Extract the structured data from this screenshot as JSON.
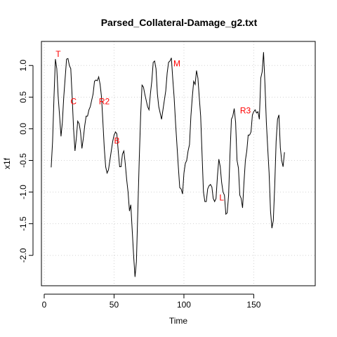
{
  "chart_data": {
    "type": "line",
    "title": "Parsed_Collateral-Damage_g2.txt",
    "xlabel": "Time",
    "ylabel": "x1f",
    "xlim": [
      -2,
      194
    ],
    "ylim": [
      -2.48,
      1.38
    ],
    "xticks": [
      0,
      50,
      100,
      150
    ],
    "xtick_labels": [
      "0",
      "50",
      "100",
      "150"
    ],
    "yticks": [
      -2.0,
      -1.5,
      -1.0,
      -0.5,
      0.0,
      0.5,
      1.0
    ],
    "ytick_labels": [
      "-2.0",
      "-1.5",
      "-1.0",
      "-0.5",
      "0.0",
      "0.5",
      "1.0"
    ],
    "grid": true,
    "line_color": "#000000",
    "grid_color": "#d3d3d3",
    "annotation_color": "#ff0000",
    "series": [
      {
        "values": [
          [
            5,
            -0.61
          ],
          [
            6,
            -0.2
          ],
          [
            7,
            0.5
          ],
          [
            8,
            1.1
          ],
          [
            9,
            0.95
          ],
          [
            10,
            0.5
          ],
          [
            11,
            0.2
          ],
          [
            12,
            -0.12
          ],
          [
            13,
            0.1
          ],
          [
            14,
            0.5
          ],
          [
            15,
            0.8
          ],
          [
            16,
            1.1
          ],
          [
            17,
            1.11
          ],
          [
            18,
            1.0
          ],
          [
            19,
            0.95
          ],
          [
            20,
            0.5
          ],
          [
            21,
            0.0
          ],
          [
            22,
            -0.35
          ],
          [
            23,
            -0.15
          ],
          [
            24,
            0.12
          ],
          [
            25,
            0.08
          ],
          [
            26,
            -0.05
          ],
          [
            27,
            -0.31
          ],
          [
            28,
            -0.15
          ],
          [
            29,
            0.05
          ],
          [
            30,
            0.2
          ],
          [
            31,
            0.2
          ],
          [
            32,
            0.3
          ],
          [
            33,
            0.35
          ],
          [
            34,
            0.45
          ],
          [
            35,
            0.55
          ],
          [
            36,
            0.75
          ],
          [
            37,
            0.77
          ],
          [
            38,
            0.76
          ],
          [
            39,
            0.82
          ],
          [
            40,
            0.7
          ],
          [
            41,
            0.5
          ],
          [
            42,
            0.1
          ],
          [
            43,
            -0.3
          ],
          [
            44,
            -0.6
          ],
          [
            45,
            -0.7
          ],
          [
            46,
            -0.65
          ],
          [
            47,
            -0.5
          ],
          [
            48,
            -0.35
          ],
          [
            49,
            -0.2
          ],
          [
            50,
            -0.1
          ],
          [
            51,
            -0.05
          ],
          [
            52,
            -0.08
          ],
          [
            53,
            -0.35
          ],
          [
            54,
            -0.6
          ],
          [
            55,
            -0.6
          ],
          [
            56,
            -0.4
          ],
          [
            57,
            -0.35
          ],
          [
            58,
            -0.55
          ],
          [
            59,
            -0.8
          ],
          [
            60,
            -1.0
          ],
          [
            61,
            -1.3
          ],
          [
            62,
            -1.2
          ],
          [
            63,
            -1.6
          ],
          [
            64,
            -2.0
          ],
          [
            65,
            -2.34
          ],
          [
            66,
            -2.1
          ],
          [
            67,
            -1.3
          ],
          [
            68,
            -0.5
          ],
          [
            69,
            0.2
          ],
          [
            70,
            0.69
          ],
          [
            71,
            0.66
          ],
          [
            72,
            0.55
          ],
          [
            73,
            0.45
          ],
          [
            74,
            0.35
          ],
          [
            75,
            0.3
          ],
          [
            76,
            0.55
          ],
          [
            77,
            0.75
          ],
          [
            78,
            1.05
          ],
          [
            79,
            1.07
          ],
          [
            80,
            0.95
          ],
          [
            81,
            0.55
          ],
          [
            82,
            0.35
          ],
          [
            83,
            0.25
          ],
          [
            84,
            0.15
          ],
          [
            85,
            0.3
          ],
          [
            86,
            0.45
          ],
          [
            87,
            0.6
          ],
          [
            88,
            0.88
          ],
          [
            89,
            1.05
          ],
          [
            90,
            1.07
          ],
          [
            91,
            1.12
          ],
          [
            92,
            0.8
          ],
          [
            93,
            0.5
          ],
          [
            94,
            0.1
          ],
          [
            95,
            -0.25
          ],
          [
            96,
            -0.6
          ],
          [
            97,
            -0.93
          ],
          [
            98,
            -0.95
          ],
          [
            99,
            -1.03
          ],
          [
            100,
            -0.7
          ],
          [
            101,
            -0.55
          ],
          [
            102,
            -0.5
          ],
          [
            103,
            -0.35
          ],
          [
            104,
            -0.25
          ],
          [
            105,
            0.2
          ],
          [
            106,
            0.5
          ],
          [
            107,
            0.75
          ],
          [
            108,
            0.7
          ],
          [
            109,
            0.92
          ],
          [
            110,
            0.8
          ],
          [
            111,
            0.5
          ],
          [
            112,
            0.2
          ],
          [
            113,
            -0.4
          ],
          [
            114,
            -1.0
          ],
          [
            115,
            -1.15
          ],
          [
            116,
            -1.15
          ],
          [
            117,
            -0.95
          ],
          [
            118,
            -0.9
          ],
          [
            119,
            -0.88
          ],
          [
            120,
            -0.92
          ],
          [
            121,
            -1.1
          ],
          [
            122,
            -1.15
          ],
          [
            123,
            -1.1
          ],
          [
            124,
            -0.75
          ],
          [
            125,
            -0.48
          ],
          [
            126,
            -0.6
          ],
          [
            127,
            -0.85
          ],
          [
            128,
            -1.0
          ],
          [
            129,
            -1.05
          ],
          [
            130,
            -1.35
          ],
          [
            131,
            -1.33
          ],
          [
            132,
            -1.05
          ],
          [
            133,
            -0.4
          ],
          [
            134,
            0.15
          ],
          [
            135,
            0.2
          ],
          [
            136,
            0.32
          ],
          [
            137,
            0.1
          ],
          [
            138,
            -0.5
          ],
          [
            139,
            -0.62
          ],
          [
            140,
            -1.05
          ],
          [
            141,
            -1.1
          ],
          [
            142,
            -1.25
          ],
          [
            143,
            -0.85
          ],
          [
            144,
            -0.5
          ],
          [
            145,
            -0.35
          ],
          [
            146,
            -0.1
          ],
          [
            147,
            -0.1
          ],
          [
            148,
            -0.05
          ],
          [
            149,
            0.22
          ],
          [
            150,
            0.27
          ],
          [
            151,
            0.3
          ],
          [
            152,
            0.25
          ],
          [
            153,
            0.27
          ],
          [
            154,
            0.15
          ],
          [
            155,
            0.8
          ],
          [
            156,
            0.9
          ],
          [
            157,
            1.21
          ],
          [
            158,
            0.7
          ],
          [
            159,
            0.1
          ],
          [
            160,
            -0.3
          ],
          [
            161,
            -0.7
          ],
          [
            162,
            -1.3
          ],
          [
            163,
            -1.57
          ],
          [
            164,
            -1.45
          ],
          [
            165,
            -0.9
          ],
          [
            166,
            -0.2
          ],
          [
            167,
            0.15
          ],
          [
            168,
            0.22
          ],
          [
            169,
            -0.3
          ],
          [
            170,
            -0.5
          ],
          [
            171,
            -0.6
          ],
          [
            172,
            -0.37
          ]
        ]
      }
    ],
    "annotations": [
      {
        "label": "T",
        "x": 10,
        "y": 1.18
      },
      {
        "label": "C",
        "x": 21,
        "y": 0.43
      },
      {
        "label": "R2",
        "x": 43,
        "y": 0.43
      },
      {
        "label": "B",
        "x": 52,
        "y": -0.19
      },
      {
        "label": "M",
        "x": 95,
        "y": 1.03
      },
      {
        "label": "L",
        "x": 127,
        "y": -1.09
      },
      {
        "label": "R3",
        "x": 144,
        "y": 0.29
      }
    ]
  }
}
